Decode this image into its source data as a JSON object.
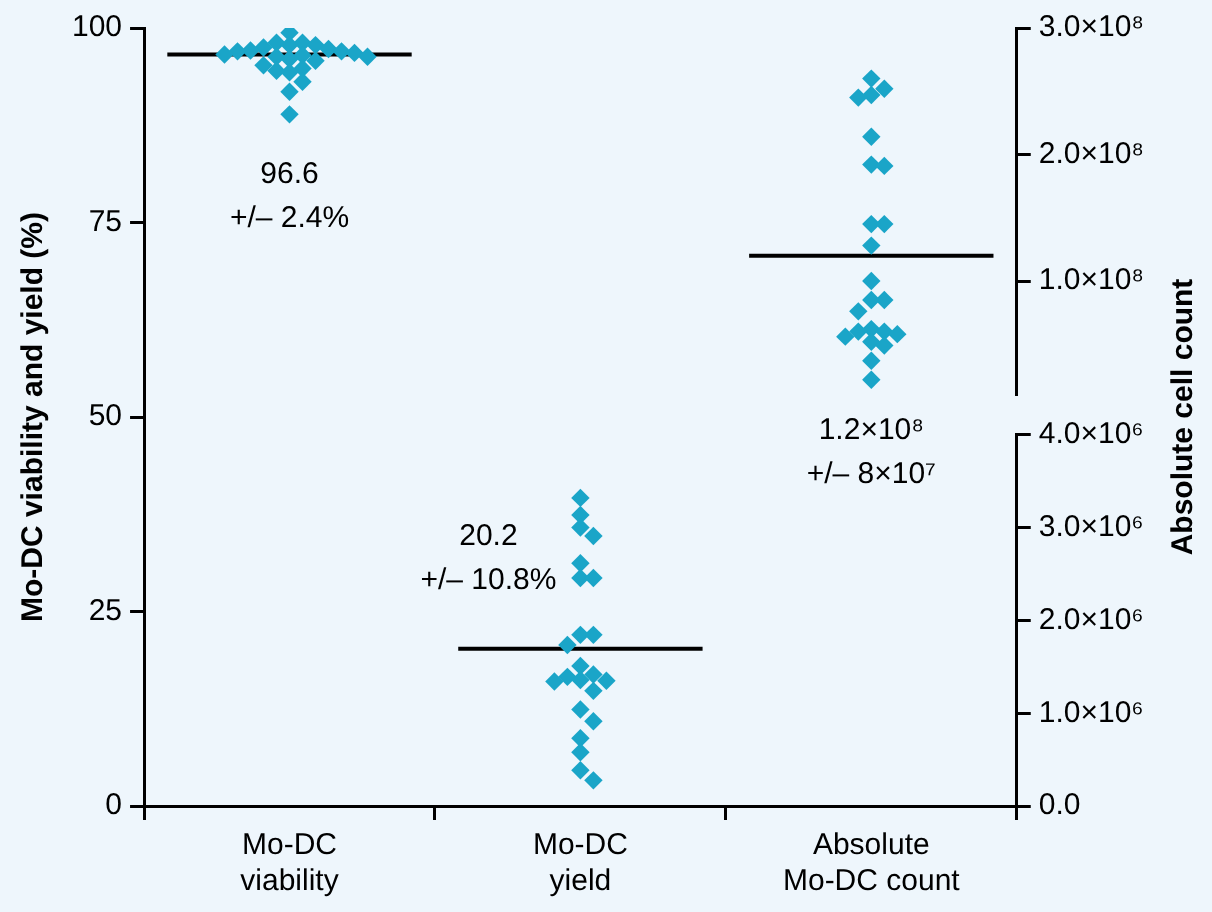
{
  "chart_data": {
    "type": "scatter",
    "categories": [
      "Mo-DC viability",
      "Mo-DC yield",
      "Absolute Mo-DC count"
    ],
    "ylabel": "Mo-DC viability and yield (%)",
    "y2label": "Absolute cell count",
    "ylim": [
      0,
      100
    ],
    "yticks": [
      0,
      25,
      50,
      75,
      100
    ],
    "y2lim": [
      10000000,
      300000000
    ],
    "y2ticks": [
      {
        "value": 100000000,
        "label": "1.0×10⁸"
      },
      {
        "value": 200000000,
        "label": "2.0×10⁸"
      },
      {
        "value": 300000000,
        "label": "3.0×10⁸"
      }
    ],
    "y3lim": [
      0,
      4000000
    ],
    "y3ticks": [
      {
        "value": 0,
        "label": "0.0"
      },
      {
        "value": 1000000,
        "label": "1.0×10⁶"
      },
      {
        "value": 2000000,
        "label": "2.0×10⁶"
      },
      {
        "value": 3000000,
        "label": "3.0×10⁶"
      },
      {
        "value": 4000000,
        "label": "4.0×10⁶"
      }
    ],
    "marker": "diamond",
    "grid": false,
    "legend": false,
    "series": [
      {
        "color": "#1aa5c8",
        "x": [
          "Mo-DC viability",
          "Mo-DC viability",
          "Mo-DC viability",
          "Mo-DC viability",
          "Mo-DC viability",
          "Mo-DC viability",
          "Mo-DC viability",
          "Mo-DC viability",
          "Mo-DC viability",
          "Mo-DC viability",
          "Mo-DC viability",
          "Mo-DC viability",
          "Mo-DC viability",
          "Mo-DC viability",
          "Mo-DC viability",
          "Mo-DC viability",
          "Mo-DC viability",
          "Mo-DC viability",
          "Mo-DC viability",
          "Mo-DC viability",
          "Mo-DC viability",
          "Mo-DC viability",
          "Mo-DC viability",
          "Mo-DC viability"
        ],
        "values": [
          99.4,
          98.1,
          98.1,
          97.8,
          97.8,
          97.5,
          97.3,
          97.1,
          97.0,
          97.0,
          96.8,
          96.6,
          96.5,
          96.3,
          96.3,
          96.0,
          95.8,
          95.2,
          94.8,
          94.5,
          94.3,
          93.1,
          91.8,
          88.9
        ]
      },
      {
        "color": "#1aa5c8",
        "x": [
          "Mo-DC yield",
          "Mo-DC yield",
          "Mo-DC yield",
          "Mo-DC yield",
          "Mo-DC yield",
          "Mo-DC yield",
          "Mo-DC yield",
          "Mo-DC yield",
          "Mo-DC yield",
          "Mo-DC yield",
          "Mo-DC yield",
          "Mo-DC yield",
          "Mo-DC yield",
          "Mo-DC yield",
          "Mo-DC yield",
          "Mo-DC yield",
          "Mo-DC yield",
          "Mo-DC yield",
          "Mo-DC yield",
          "Mo-DC yield",
          "Mo-DC yield",
          "Mo-DC yield",
          "Mo-DC yield"
        ],
        "values": [
          39.6,
          37.4,
          35.8,
          34.7,
          31.2,
          29.3,
          29.3,
          22.0,
          22.0,
          20.7,
          18.0,
          16.9,
          16.6,
          16.2,
          16.1,
          16.0,
          14.8,
          12.4,
          10.9,
          8.7,
          6.9,
          4.6,
          3.3
        ]
      },
      {
        "color": "#1aa5c8",
        "axis": "y2",
        "x": [
          "Absolute Mo-DC count",
          "Absolute Mo-DC count",
          "Absolute Mo-DC count",
          "Absolute Mo-DC count",
          "Absolute Mo-DC count",
          "Absolute Mo-DC count",
          "Absolute Mo-DC count",
          "Absolute Mo-DC count",
          "Absolute Mo-DC count",
          "Absolute Mo-DC count",
          "Absolute Mo-DC count",
          "Absolute Mo-DC count",
          "Absolute Mo-DC count",
          "Absolute Mo-DC count",
          "Absolute Mo-DC count",
          "Absolute Mo-DC count",
          "Absolute Mo-DC count",
          "Absolute Mo-DC count",
          "Absolute Mo-DC count",
          "Absolute Mo-DC count",
          "Absolute Mo-DC count",
          "Absolute Mo-DC count",
          "Absolute Mo-DC count"
        ],
        "values": [
          260000000,
          252000000,
          247000000,
          245000000,
          214000000,
          192000000,
          191000000,
          145000000,
          145000000,
          128000000,
          100000000,
          85000000,
          85000000,
          76000000,
          62000000,
          60000000,
          60000000,
          58000000,
          56000000,
          52000000,
          49000000,
          37000000,
          22000000
        ]
      }
    ],
    "ref_lines": [
      {
        "axis": "y",
        "value": 96.6,
        "color": "#000000"
      },
      {
        "axis": "y",
        "value": 20.2,
        "color": "#000000"
      },
      {
        "axis": "y2",
        "value": 120000000,
        "color": "#000000"
      }
    ],
    "annotations": [
      "96.6\n+/– 2.4%",
      "20.2\n+/– 10.8%",
      "1.2×10⁸\n+/– 8×10⁷"
    ]
  }
}
